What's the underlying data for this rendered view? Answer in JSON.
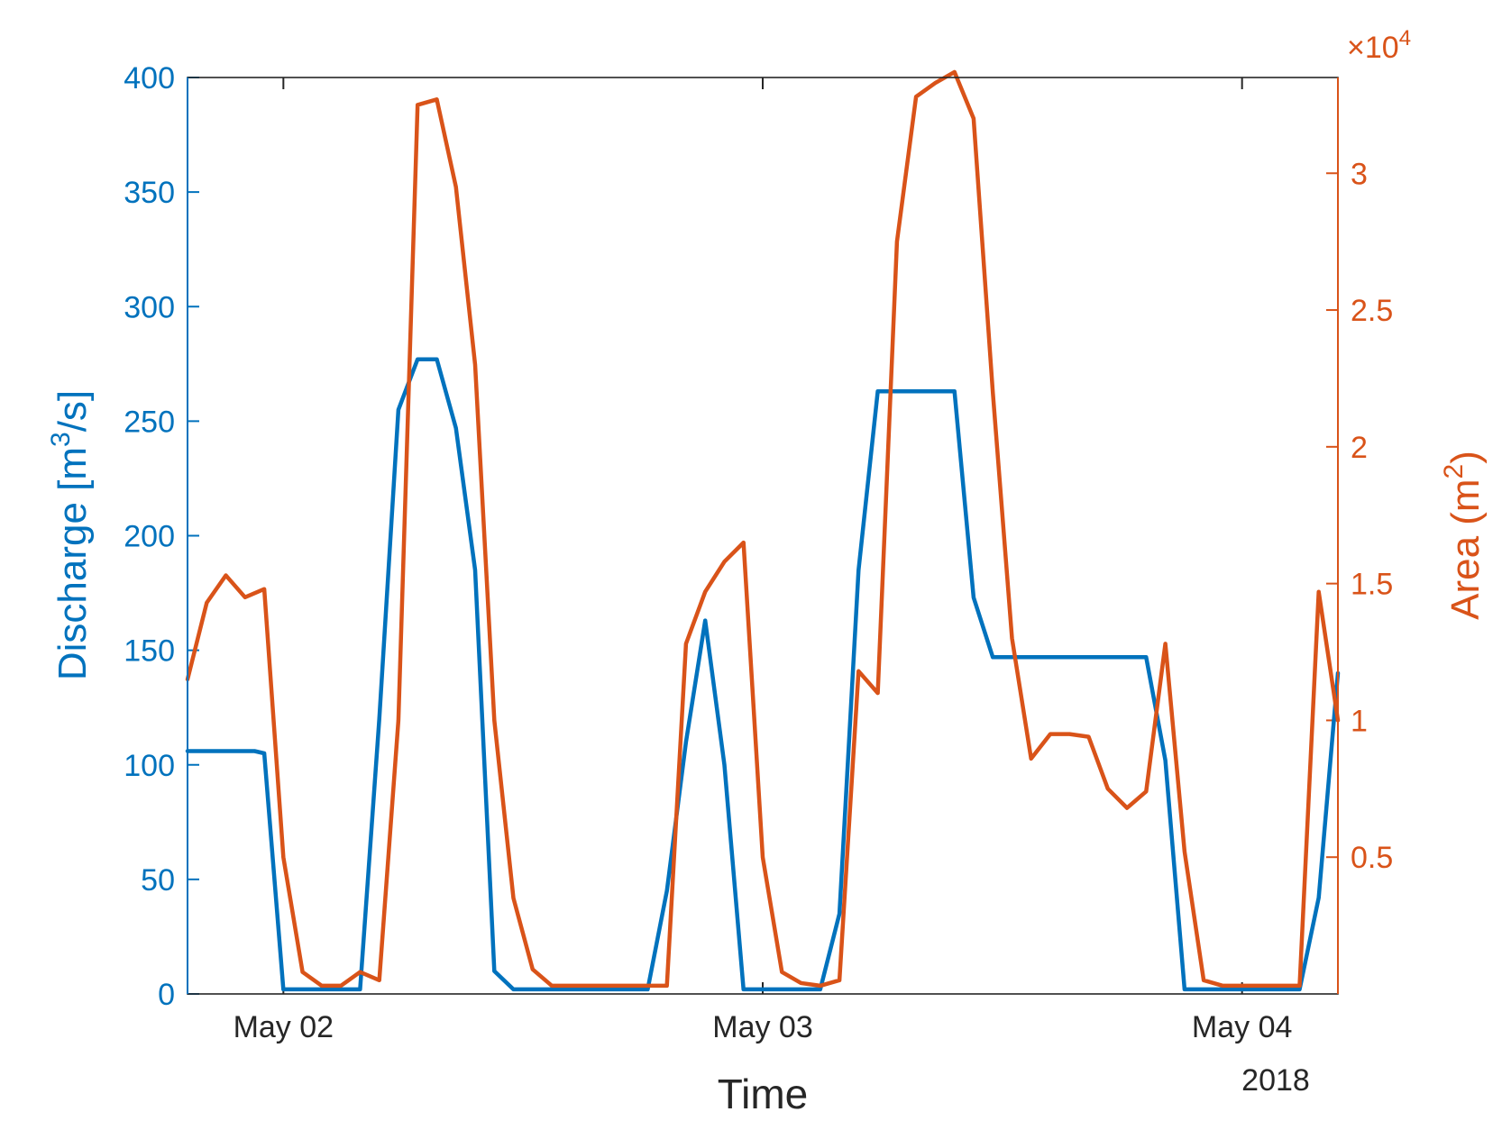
{
  "chart_data": {
    "type": "line",
    "xlabel": "Time",
    "year_label": "2018",
    "x_ticks": [
      "May 02",
      "May 03",
      "May 04"
    ],
    "x_tick_positions": [
      0.2,
      1.2,
      2.2
    ],
    "xlim": [
      0,
      2.4
    ],
    "grid": false,
    "left_axis": {
      "label_main": "Discharge [m",
      "label_sup": "3",
      "label_tail": "/s]",
      "ylim": [
        0,
        400
      ],
      "ticks": [
        0,
        50,
        100,
        150,
        200,
        250,
        300,
        350,
        400
      ],
      "tick_labels": [
        "0",
        "50",
        "100",
        "150",
        "200",
        "250",
        "300",
        "350",
        "400"
      ]
    },
    "right_axis": {
      "label_main": "Area (m",
      "label_sup": "2",
      "label_tail": ")",
      "ylim": [
        0,
        33500
      ],
      "ticks": [
        5000,
        10000,
        15000,
        20000,
        25000,
        30000
      ],
      "tick_labels": [
        "0.5",
        "1",
        "1.5",
        "2",
        "2.5",
        "3"
      ],
      "multiplier_base": "×10",
      "multiplier_exp": "4"
    },
    "series": [
      {
        "axis": "left",
        "x": [
          0,
          0.04,
          0.08,
          0.12,
          0.14,
          0.16,
          0.2,
          0.24,
          0.28,
          0.32,
          0.36,
          0.4,
          0.44,
          0.48,
          0.52,
          0.56,
          0.6,
          0.64,
          0.68,
          0.72,
          0.76,
          0.8,
          0.84,
          0.88,
          0.92,
          0.96,
          1.0,
          1.04,
          1.08,
          1.12,
          1.16,
          1.2,
          1.24,
          1.28,
          1.32,
          1.36,
          1.4,
          1.44,
          1.48,
          1.52,
          1.56,
          1.6,
          1.64,
          1.68,
          1.72,
          1.76,
          1.8,
          1.84,
          1.88,
          1.92,
          1.96,
          2.0,
          2.04,
          2.08,
          2.12,
          2.16,
          2.2,
          2.24,
          2.28,
          2.32,
          2.36,
          2.4
        ],
        "values": [
          106,
          106,
          106,
          106,
          106,
          105,
          2,
          2,
          2,
          2,
          2,
          120,
          255,
          277,
          277,
          247,
          185,
          10,
          2,
          2,
          2,
          2,
          2,
          2,
          2,
          2,
          45,
          110,
          163,
          100,
          2,
          2,
          2,
          2,
          2,
          35,
          185,
          263,
          263,
          263,
          263,
          263,
          173,
          147,
          147,
          147,
          147,
          147,
          147,
          147,
          147,
          147,
          102,
          2,
          2,
          2,
          2,
          2,
          2,
          2,
          42,
          140
        ]
      },
      {
        "axis": "right",
        "x": [
          0,
          0.04,
          0.08,
          0.12,
          0.16,
          0.2,
          0.24,
          0.28,
          0.32,
          0.36,
          0.4,
          0.44,
          0.48,
          0.52,
          0.56,
          0.6,
          0.64,
          0.68,
          0.72,
          0.76,
          0.8,
          0.84,
          0.88,
          0.92,
          0.96,
          1.0,
          1.04,
          1.08,
          1.12,
          1.16,
          1.2,
          1.24,
          1.28,
          1.32,
          1.36,
          1.4,
          1.44,
          1.48,
          1.52,
          1.56,
          1.6,
          1.64,
          1.68,
          1.72,
          1.76,
          1.8,
          1.84,
          1.88,
          1.92,
          1.96,
          2.0,
          2.04,
          2.08,
          2.12,
          2.16,
          2.2,
          2.24,
          2.28,
          2.32,
          2.36,
          2.4
        ],
        "values": [
          11500,
          14300,
          15300,
          14500,
          14800,
          5000,
          800,
          300,
          300,
          800,
          500,
          10000,
          32500,
          32700,
          29500,
          23000,
          10000,
          3500,
          900,
          300,
          300,
          300,
          300,
          300,
          300,
          300,
          12800,
          14700,
          15800,
          16500,
          5000,
          800,
          400,
          300,
          500,
          11800,
          11000,
          27500,
          32800,
          33300,
          33700,
          32000,
          22000,
          13000,
          8600,
          9500,
          9500,
          9400,
          7500,
          6800,
          7400,
          12800,
          5200,
          500,
          300,
          300,
          300,
          300,
          300,
          14700,
          10000
        ]
      }
    ],
    "colors": {
      "left": "#0072BD",
      "right": "#D95319",
      "axis": "#262626"
    }
  }
}
